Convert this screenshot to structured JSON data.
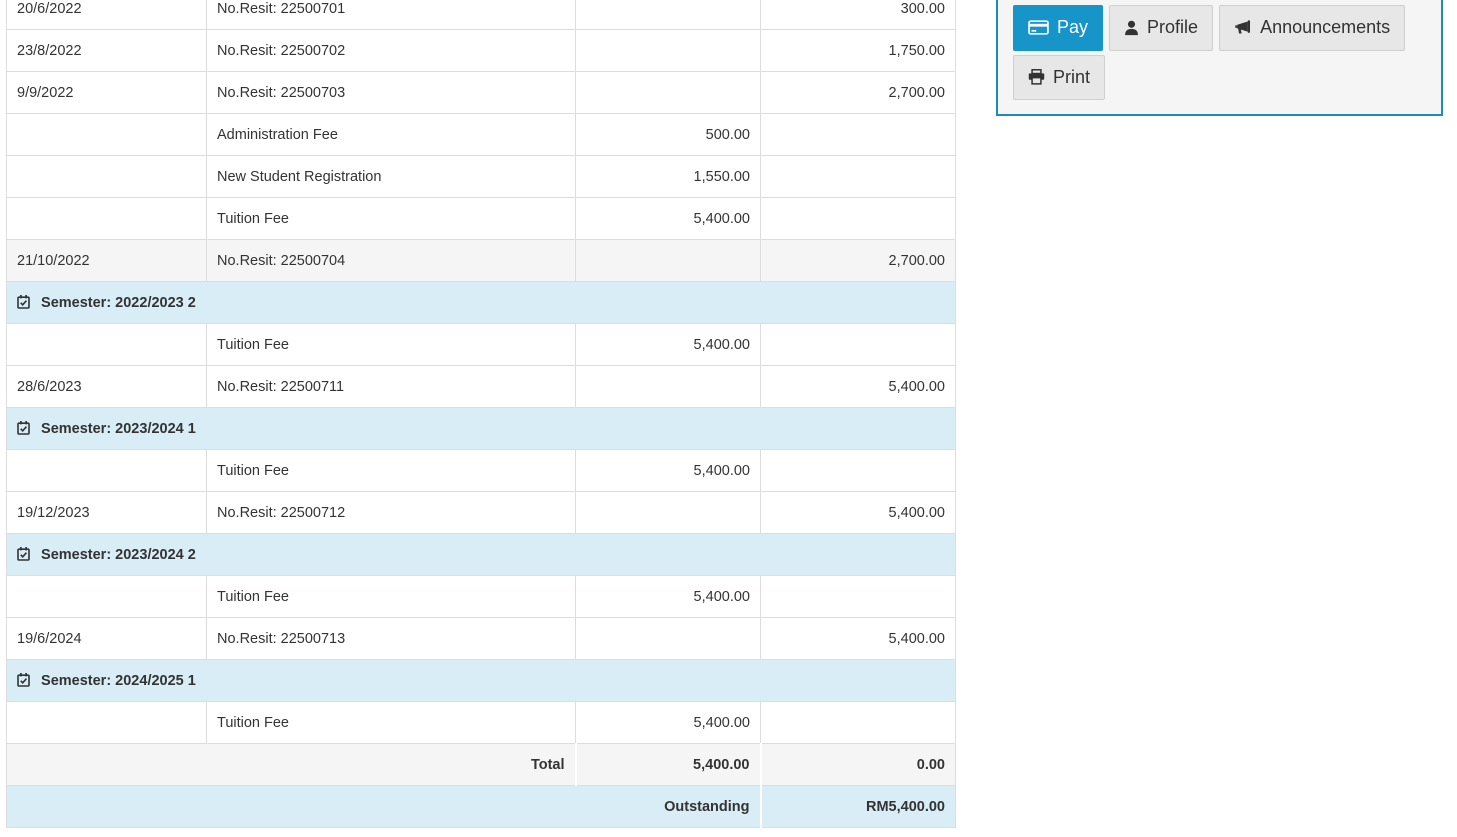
{
  "colors": {
    "accent_blue": "#1794c8",
    "panel_border": "#1a8cba",
    "panel_bg": "#f5f5f5",
    "semester_row_bg": "#d9edf7",
    "outstanding_row_bg": "#d9edf7",
    "total_row_bg": "#f5f5f5",
    "shaded_row_bg": "#f5f5f5",
    "table_border": "#dddddd",
    "button_gray_bg": "#e7e7e7",
    "text": "#333333"
  },
  "fees_table": {
    "rows": [
      {
        "type": "item",
        "date": "20/6/2022",
        "description": "No.Resit: 22500701",
        "charge": "",
        "payment": "300.00"
      },
      {
        "type": "item",
        "date": "23/8/2022",
        "description": "No.Resit: 22500702",
        "charge": "",
        "payment": "1,750.00"
      },
      {
        "type": "item",
        "date": "9/9/2022",
        "description": "No.Resit: 22500703",
        "charge": "",
        "payment": "2,700.00"
      },
      {
        "type": "item",
        "date": "",
        "description": "Administration Fee",
        "charge": "500.00",
        "payment": ""
      },
      {
        "type": "item",
        "date": "",
        "description": "New Student Registration",
        "charge": "1,550.00",
        "payment": ""
      },
      {
        "type": "item",
        "date": "",
        "description": "Tuition Fee",
        "charge": "5,400.00",
        "payment": ""
      },
      {
        "type": "item",
        "shaded": true,
        "date": "21/10/2022",
        "description": "No.Resit: 22500704",
        "charge": "",
        "payment": "2,700.00"
      },
      {
        "type": "semester",
        "label": "Semester: 2022/2023 2"
      },
      {
        "type": "item",
        "date": "",
        "description": "Tuition Fee",
        "charge": "5,400.00",
        "payment": ""
      },
      {
        "type": "item",
        "date": "28/6/2023",
        "description": "No.Resit: 22500711",
        "charge": "",
        "payment": "5,400.00"
      },
      {
        "type": "semester",
        "label": "Semester: 2023/2024 1"
      },
      {
        "type": "item",
        "date": "",
        "description": "Tuition Fee",
        "charge": "5,400.00",
        "payment": ""
      },
      {
        "type": "item",
        "date": "19/12/2023",
        "description": "No.Resit: 22500712",
        "charge": "",
        "payment": "5,400.00"
      },
      {
        "type": "semester",
        "label": "Semester: 2023/2024 2"
      },
      {
        "type": "item",
        "date": "",
        "description": "Tuition Fee",
        "charge": "5,400.00",
        "payment": ""
      },
      {
        "type": "item",
        "date": "19/6/2024",
        "description": "No.Resit: 22500713",
        "charge": "",
        "payment": "5,400.00"
      },
      {
        "type": "semester",
        "label": "Semester: 2024/2025 1"
      },
      {
        "type": "item",
        "date": "",
        "description": "Tuition Fee",
        "charge": "5,400.00",
        "payment": ""
      },
      {
        "type": "total",
        "label": "Total",
        "charge": "5,400.00",
        "payment": "0.00"
      },
      {
        "type": "outstanding",
        "label": "Outstanding",
        "amount": "RM5,400.00"
      }
    ]
  },
  "actions_panel": {
    "buttons": [
      {
        "id": "pay",
        "label": "Pay",
        "icon": "credit-card-icon",
        "active": true
      },
      {
        "id": "profile",
        "label": "Profile",
        "icon": "user-icon",
        "active": false
      },
      {
        "id": "announcements",
        "label": "Announcements",
        "icon": "bullhorn-icon",
        "active": false
      },
      {
        "id": "print",
        "label": "Print",
        "icon": "printer-icon",
        "active": false
      }
    ]
  }
}
